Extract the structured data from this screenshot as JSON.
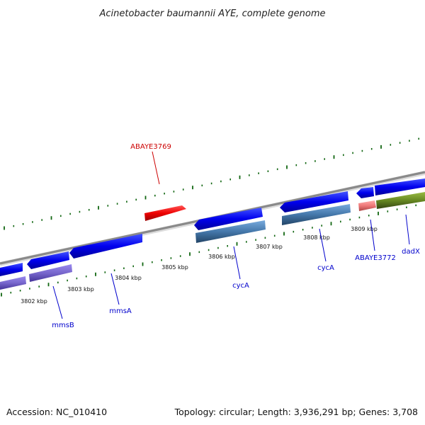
{
  "title": "Acinetobacter baumannii AYE, complete genome",
  "footer": {
    "accession": "Accession: NC_010410",
    "summary": "Topology: circular; Length: 3,936,291 bp; Genes: 3,708"
  },
  "ticks": [
    "3802 kbp",
    "3803 kbp",
    "3804 kbp",
    "3805 kbp",
    "3806 kbp",
    "3807 kbp",
    "3808 kbp",
    "3809 kbp"
  ],
  "gene_labels": {
    "abaye3769": "ABAYE3769",
    "mmsb": "mmsB",
    "mmsa": "mmsA",
    "cyca_1": "cycA",
    "cyca_2": "cycA",
    "abaye3772": "ABAYE3772",
    "dadx": "dadX"
  },
  "colors": {
    "cds": "#0000ee",
    "cds_red": "#ee0000",
    "rrna_purple": "#7766cc",
    "rrna_steel": "#4477aa",
    "rrna_pink": "#ee7777",
    "rrna_olive": "#668822",
    "backbone": "#888888",
    "tick_green": "#116611"
  }
}
